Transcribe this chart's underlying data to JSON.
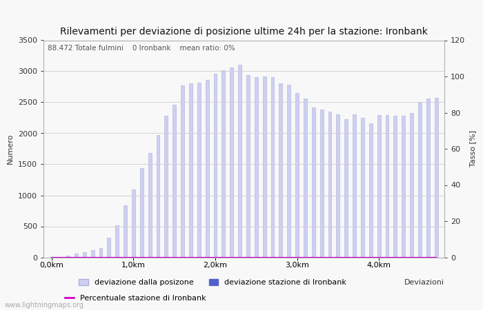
{
  "title": "Rilevamenti per deviazione di posizione ultime 24h per la stazione: Ironbank",
  "subtitle": "88.472 Totale fulmini    0 Ironbank    mean ratio: 0%",
  "xlabel": "Deviazioni",
  "ylabel_left": "Numero",
  "ylabel_right": "Tasso [%]",
  "x_tick_labels": [
    "0,0km",
    "1,0km",
    "2,0km",
    "3,0km",
    "4,0km"
  ],
  "x_tick_positions": [
    0,
    10,
    20,
    30,
    40
  ],
  "ylim_left": [
    0,
    3500
  ],
  "ylim_right": [
    0,
    120
  ],
  "yticks_left": [
    0,
    500,
    1000,
    1500,
    2000,
    2500,
    3000,
    3500
  ],
  "yticks_right": [
    0,
    20,
    40,
    60,
    80,
    100,
    120
  ],
  "bar_color_light": "#cdd0f0",
  "bar_color_dark": "#5060cc",
  "bar_edge_color": "#aab0dd",
  "line_color": "#cc00cc",
  "background_color": "#f8f8f8",
  "grid_color": "#cccccc",
  "watermark": "www.lightningmaps.org",
  "legend_label1": "deviazione dalla posizone",
  "legend_label2": "deviazione stazione di Ironbank",
  "legend_label3": "Percentuale stazione di Ironbank",
  "bar_values": [
    5,
    10,
    30,
    60,
    80,
    120,
    150,
    320,
    520,
    840,
    1100,
    1440,
    1680,
    1970,
    2280,
    2460,
    2770,
    2800,
    2820,
    2860,
    2960,
    3020,
    3060,
    3100,
    2940,
    2900,
    2920,
    2900,
    2800,
    2780,
    2650,
    2560,
    2420,
    2380,
    2350,
    2300,
    2230,
    2300,
    2250,
    2160,
    2290,
    2290,
    2280,
    2280,
    2330,
    2490,
    2560,
    2570
  ],
  "station_values": [
    0,
    0,
    0,
    0,
    0,
    0,
    0,
    0,
    0,
    0,
    0,
    0,
    0,
    0,
    0,
    0,
    0,
    0,
    0,
    0,
    0,
    0,
    0,
    0,
    0,
    0,
    0,
    0,
    0,
    0,
    0,
    0,
    0,
    0,
    0,
    0,
    0,
    0,
    0,
    0,
    0,
    0,
    0,
    0,
    0,
    0,
    0,
    0
  ],
  "ratio_values": [
    0,
    0,
    0,
    0,
    0,
    0,
    0,
    0,
    0,
    0,
    0,
    0,
    0,
    0,
    0,
    0,
    0,
    0,
    0,
    0,
    0,
    0,
    0,
    0,
    0,
    0,
    0,
    0,
    0,
    0,
    0,
    0,
    0,
    0,
    0,
    0,
    0,
    0,
    0,
    0,
    0,
    0,
    0,
    0,
    0,
    0,
    0,
    0
  ]
}
